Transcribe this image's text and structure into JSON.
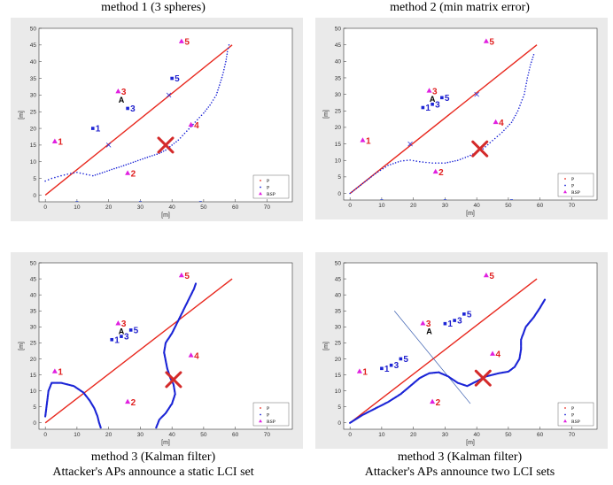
{
  "captions": {
    "top_left": "method 1 (3 spheres)",
    "top_right": "method 2 (min matrix error)",
    "bottom_left_1": "method 3 (Kalman filter)",
    "bottom_left_2": "Attacker's APs announce a static LCI set",
    "bottom_right_1": "method 3 (Kalman filter)",
    "bottom_right_2": "Attacker's APs announce two LCI sets"
  },
  "colors": {
    "true_path": "#e8281e",
    "estimate": "#1b24d6",
    "rsp": "#e020e0",
    "attacker": "#d42a2a",
    "panel_bg": "#eaeaea"
  },
  "chart_data": [
    {
      "id": "p1",
      "type": "scatter",
      "title": "",
      "xlabel": "[m]",
      "ylabel": "[m]",
      "xlim": [
        -2,
        78
      ],
      "ylim": [
        -2,
        50
      ],
      "xticks": [
        0,
        10,
        20,
        30,
        40,
        50,
        60,
        70
      ],
      "yticks": [
        0,
        5,
        10,
        15,
        20,
        25,
        30,
        35,
        40,
        45,
        50
      ],
      "legend": {
        "position": "bottom-right",
        "entries": [
          "P",
          "P",
          "RSP"
        ]
      },
      "true_path": [
        [
          0,
          0
        ],
        [
          59,
          45
        ]
      ],
      "estimate_path": [
        [
          0,
          4.2
        ],
        [
          2,
          5
        ],
        [
          5,
          5.8
        ],
        [
          8,
          6.5
        ],
        [
          10,
          6.8
        ],
        [
          13,
          6.2
        ],
        [
          15,
          5.8
        ],
        [
          18,
          6.7
        ],
        [
          21,
          7.7
        ],
        [
          24,
          8.6
        ],
        [
          27,
          9.6
        ],
        [
          30,
          10.6
        ],
        [
          33,
          11.6
        ],
        [
          36,
          12.5
        ],
        [
          38,
          13.5
        ],
        [
          40,
          15
        ],
        [
          42,
          16.5
        ],
        [
          44,
          18.5
        ],
        [
          46,
          20.5
        ],
        [
          48,
          22.6
        ],
        [
          50,
          24.6
        ],
        [
          52,
          27
        ],
        [
          54,
          30
        ],
        [
          55,
          33
        ],
        [
          56,
          36
        ],
        [
          57,
          40
        ],
        [
          57.5,
          43
        ],
        [
          58,
          45
        ]
      ],
      "crosses": [
        [
          20,
          15
        ],
        [
          39,
          30
        ]
      ],
      "rsp": [
        {
          "label": "1",
          "x": 3,
          "y": 16
        },
        {
          "label": "2",
          "x": 26,
          "y": 6.5
        },
        {
          "label": "3",
          "x": 23,
          "y": 31
        },
        {
          "label": "4",
          "x": 46,
          "y": 21
        },
        {
          "label": "5",
          "x": 43,
          "y": 46
        }
      ],
      "estimated_aps": [
        {
          "label": "1",
          "x": 15,
          "y": 20
        },
        {
          "label": "3",
          "x": 26,
          "y": 26
        },
        {
          "label": "5",
          "x": 40,
          "y": 35
        }
      ],
      "attacker_labels": [
        {
          "label": "A",
          "x": 24,
          "y": 28.5
        }
      ],
      "attacker": {
        "x": 38,
        "y": 15
      },
      "bottom_marks": [
        10,
        30,
        49
      ]
    },
    {
      "id": "p2",
      "type": "scatter",
      "title": "",
      "xlabel": "[m]",
      "ylabel": "[m]",
      "xlim": [
        -2,
        78
      ],
      "ylim": [
        -2,
        50
      ],
      "xticks": [
        0,
        10,
        20,
        30,
        40,
        50,
        60,
        70
      ],
      "yticks": [
        0,
        5,
        10,
        15,
        20,
        25,
        30,
        35,
        40,
        45,
        50
      ],
      "legend": {
        "position": "bottom-right",
        "entries": [
          "P",
          "P",
          "RSP"
        ]
      },
      "true_path": [
        [
          0,
          0
        ],
        [
          59,
          45
        ]
      ],
      "estimate_path": [
        [
          0,
          0
        ],
        [
          4,
          3
        ],
        [
          8,
          6
        ],
        [
          12,
          8.5
        ],
        [
          16,
          9.8
        ],
        [
          19,
          10.1
        ],
        [
          22,
          9.6
        ],
        [
          26,
          9.2
        ],
        [
          30,
          9.2
        ],
        [
          34,
          10
        ],
        [
          38,
          11.5
        ],
        [
          42,
          13.5
        ],
        [
          45,
          16
        ],
        [
          48,
          18.5
        ],
        [
          51,
          21.5
        ],
        [
          53,
          25
        ],
        [
          55,
          30
        ],
        [
          56,
          35
        ],
        [
          57,
          39
        ],
        [
          58,
          42
        ]
      ],
      "crosses": [
        [
          19,
          15
        ],
        [
          40,
          30
        ]
      ],
      "rsp": [
        {
          "label": "1",
          "x": 4,
          "y": 16
        },
        {
          "label": "2",
          "x": 27,
          "y": 6.5
        },
        {
          "label": "3",
          "x": 25,
          "y": 31
        },
        {
          "label": "4",
          "x": 46,
          "y": 21.5
        },
        {
          "label": "5",
          "x": 43,
          "y": 46
        }
      ],
      "estimated_aps": [
        {
          "label": "1",
          "x": 23,
          "y": 26
        },
        {
          "label": "3",
          "x": 26,
          "y": 27
        },
        {
          "label": "5",
          "x": 29,
          "y": 29
        }
      ],
      "attacker_labels": [
        {
          "label": "A",
          "x": 26,
          "y": 28.5
        }
      ],
      "attacker": {
        "x": 41,
        "y": 13.5
      },
      "bottom_marks": [
        10,
        30,
        51
      ]
    },
    {
      "id": "p3",
      "type": "scatter",
      "title": "",
      "xlabel": "[m]",
      "ylabel": "[m]",
      "xlim": [
        -2,
        78
      ],
      "ylim": [
        -2,
        50
      ],
      "xticks": [
        0,
        10,
        20,
        30,
        40,
        50,
        60,
        70
      ],
      "yticks": [
        0,
        5,
        10,
        15,
        20,
        25,
        30,
        35,
        40,
        45,
        50
      ],
      "legend": {
        "position": "bottom-right",
        "entries": [
          "P",
          "P",
          "RSP"
        ]
      },
      "true_path": [
        [
          0,
          0
        ],
        [
          59,
          45
        ]
      ],
      "estimate_path": [
        [
          0,
          2
        ],
        [
          0.5,
          6
        ],
        [
          1,
          10
        ],
        [
          2,
          12.5
        ],
        [
          5,
          12.5
        ],
        [
          9,
          11.5
        ],
        [
          12,
          9.5
        ],
        [
          14,
          7
        ],
        [
          15.5,
          4.5
        ],
        [
          16.5,
          2
        ],
        [
          17,
          0
        ],
        [
          17.5,
          -1.5
        ]
      ],
      "estimate_path_2": [
        [
          35,
          -1.5
        ],
        [
          36,
          1
        ],
        [
          38,
          3
        ],
        [
          40,
          6
        ],
        [
          41,
          9
        ],
        [
          40.5,
          12
        ],
        [
          39.5,
          14
        ],
        [
          38.5,
          17
        ],
        [
          38,
          19.5
        ],
        [
          37.5,
          22
        ],
        [
          38,
          25
        ],
        [
          40,
          28
        ],
        [
          42,
          32
        ],
        [
          44,
          36
        ],
        [
          46,
          40
        ],
        [
          47,
          42
        ],
        [
          47.5,
          43.5
        ]
      ],
      "crosses": [],
      "rsp": [
        {
          "label": "1",
          "x": 3,
          "y": 16
        },
        {
          "label": "2",
          "x": 26,
          "y": 6.5
        },
        {
          "label": "3",
          "x": 23,
          "y": 31
        },
        {
          "label": "4",
          "x": 46,
          "y": 21
        },
        {
          "label": "5",
          "x": 43,
          "y": 46
        }
      ],
      "estimated_aps": [
        {
          "label": "1",
          "x": 21,
          "y": 26
        },
        {
          "label": "3",
          "x": 24,
          "y": 27
        },
        {
          "label": "5",
          "x": 27,
          "y": 29
        }
      ],
      "attacker_labels": [
        {
          "label": "A",
          "x": 24,
          "y": 28.5
        }
      ],
      "attacker": {
        "x": 40.5,
        "y": 13.5
      },
      "bottom_marks": []
    },
    {
      "id": "p4",
      "type": "scatter",
      "title": "",
      "xlabel": "[m]",
      "ylabel": "[m]",
      "xlim": [
        -2,
        78
      ],
      "ylim": [
        -2,
        50
      ],
      "xticks": [
        0,
        10,
        20,
        30,
        40,
        50,
        60,
        70
      ],
      "yticks": [
        0,
        5,
        10,
        15,
        20,
        25,
        30,
        35,
        40,
        45,
        50
      ],
      "legend": {
        "position": "bottom-right",
        "entries": [
          "P",
          "P",
          "RSP"
        ]
      },
      "true_path": [
        [
          0,
          0
        ],
        [
          59,
          45
        ]
      ],
      "estimate_path": [
        [
          0,
          0
        ],
        [
          4,
          2.5
        ],
        [
          8,
          4.5
        ],
        [
          12,
          6.5
        ],
        [
          16,
          9
        ],
        [
          19,
          11.5
        ],
        [
          22,
          14
        ],
        [
          25,
          15.5
        ],
        [
          28,
          15.8
        ],
        [
          31,
          14.5
        ],
        [
          34,
          12.5
        ],
        [
          37,
          11.5
        ],
        [
          40,
          13
        ],
        [
          43,
          14.5
        ],
        [
          47,
          15.5
        ],
        [
          50,
          16
        ],
        [
          52,
          17.5
        ],
        [
          53.5,
          20
        ],
        [
          54,
          23
        ],
        [
          54,
          26
        ],
        [
          55.5,
          30
        ],
        [
          58,
          33
        ],
        [
          60,
          36
        ],
        [
          61.5,
          38.5
        ]
      ],
      "blue_line": [
        [
          14,
          35
        ],
        [
          38,
          6
        ]
      ],
      "crosses": [],
      "rsp": [
        {
          "label": "1",
          "x": 3,
          "y": 16
        },
        {
          "label": "2",
          "x": 26,
          "y": 6.5
        },
        {
          "label": "3",
          "x": 23,
          "y": 31
        },
        {
          "label": "4",
          "x": 45,
          "y": 21.5
        },
        {
          "label": "5",
          "x": 43,
          "y": 46
        }
      ],
      "estimated_aps": [
        {
          "label": "1",
          "x": 10,
          "y": 17
        },
        {
          "label": "3",
          "x": 13,
          "y": 18
        },
        {
          "label": "5",
          "x": 16,
          "y": 20
        },
        {
          "label": "1",
          "x": 30,
          "y": 31
        },
        {
          "label": "3",
          "x": 33,
          "y": 32
        },
        {
          "label": "5",
          "x": 36,
          "y": 34
        }
      ],
      "attacker_labels": [
        {
          "label": "A",
          "x": 25,
          "y": 28.5
        }
      ],
      "attacker": {
        "x": 42,
        "y": 14
      },
      "bottom_marks": []
    }
  ]
}
